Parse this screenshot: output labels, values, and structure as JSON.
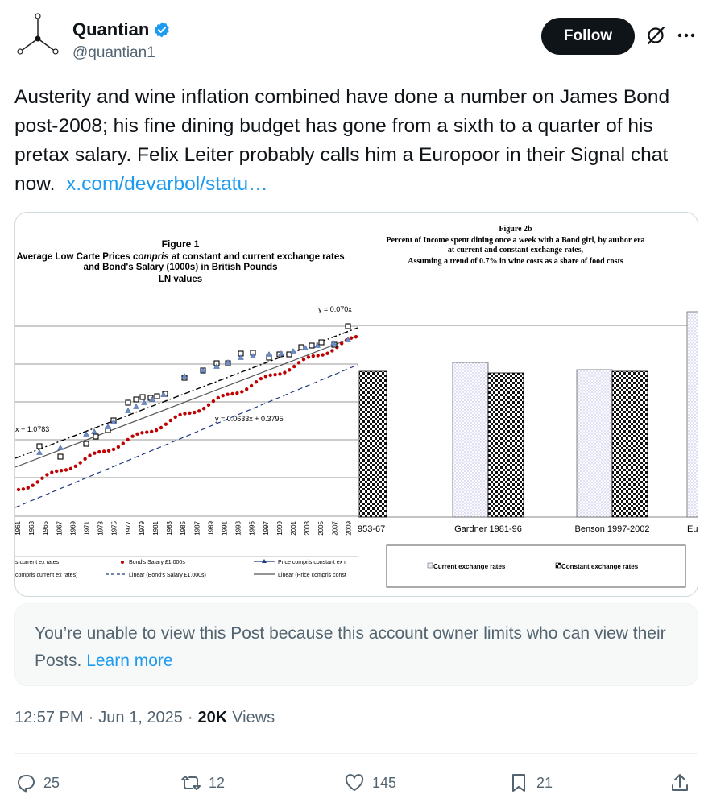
{
  "author": {
    "name": "Quantian",
    "handle": "@quantian1",
    "verified": true
  },
  "follow_label": "Follow",
  "post": {
    "text": "Austerity and wine inflation combined have done a number on James Bond post-2008; his fine dining budget has gone from a sixth to a quarter of his pretax salary.  Felix Leiter probably calls him a Europoor in their Signal chat now.",
    "link": "x.com/devarbol/statu…"
  },
  "media": {
    "figure1": {
      "title_line1": "Figure 1",
      "title_line2_a": "Average Low Carte Prices ",
      "title_line2_b": "compris",
      "title_line2_c": " at constant and current exchange rates",
      "title_line3": "and Bond's Salary (1000s) in British Pounds",
      "title_line4": "LN values",
      "eq_top": "y = 0.070x",
      "eq_left": "x + 1.0783",
      "eq_mid": "y = 0.0633x + 0.3795",
      "years": [
        "1961",
        "1963",
        "1965",
        "1967",
        "1969",
        "1971",
        "1973",
        "1975",
        "1977",
        "1979",
        "1981",
        "1983",
        "1985",
        "1987",
        "1989",
        "1991",
        "1993",
        "1995",
        "1997",
        "1999",
        "2001",
        "2003",
        "2005",
        "2007",
        "2009"
      ],
      "legend": {
        "a": "s current ex rates",
        "b": "Bond's Salary £1,000s",
        "c": "Price compris constant ex r",
        "d": "compris current ex rates)",
        "e": "Linear (Bond's Salary £1,000s)",
        "f": "Linear (Price compris const"
      }
    },
    "figure2": {
      "title_line1": "Figure 2b",
      "title_line2": "Percent of Income spent dining once a week with a Bond girl, by author era",
      "title_line3": "at current and constant exchange rates,",
      "title_line4": "Assuming a trend of 0.7% in wine costs as a share of food costs",
      "categories": [
        "953-67",
        "Gardner 1981-96",
        "Benson 1997-2002",
        "Eu"
      ],
      "legend_current": "Current exchange rates",
      "legend_constant": "Constant exchange rates"
    }
  },
  "notice": {
    "text": "You’re unable to view this Post because this account owner limits who can view their Posts.",
    "link": "Learn more"
  },
  "meta": {
    "time": "12:57 PM",
    "date": "Jun 1, 2025",
    "views_count": "20K",
    "views_label": "Views"
  },
  "actions": {
    "replies": "25",
    "reposts": "12",
    "likes": "145",
    "bookmarks": "21"
  },
  "colors": {
    "accent": "#1d9bf0",
    "text": "#0f1419",
    "muted": "#536471",
    "border": "#cfd9de"
  }
}
